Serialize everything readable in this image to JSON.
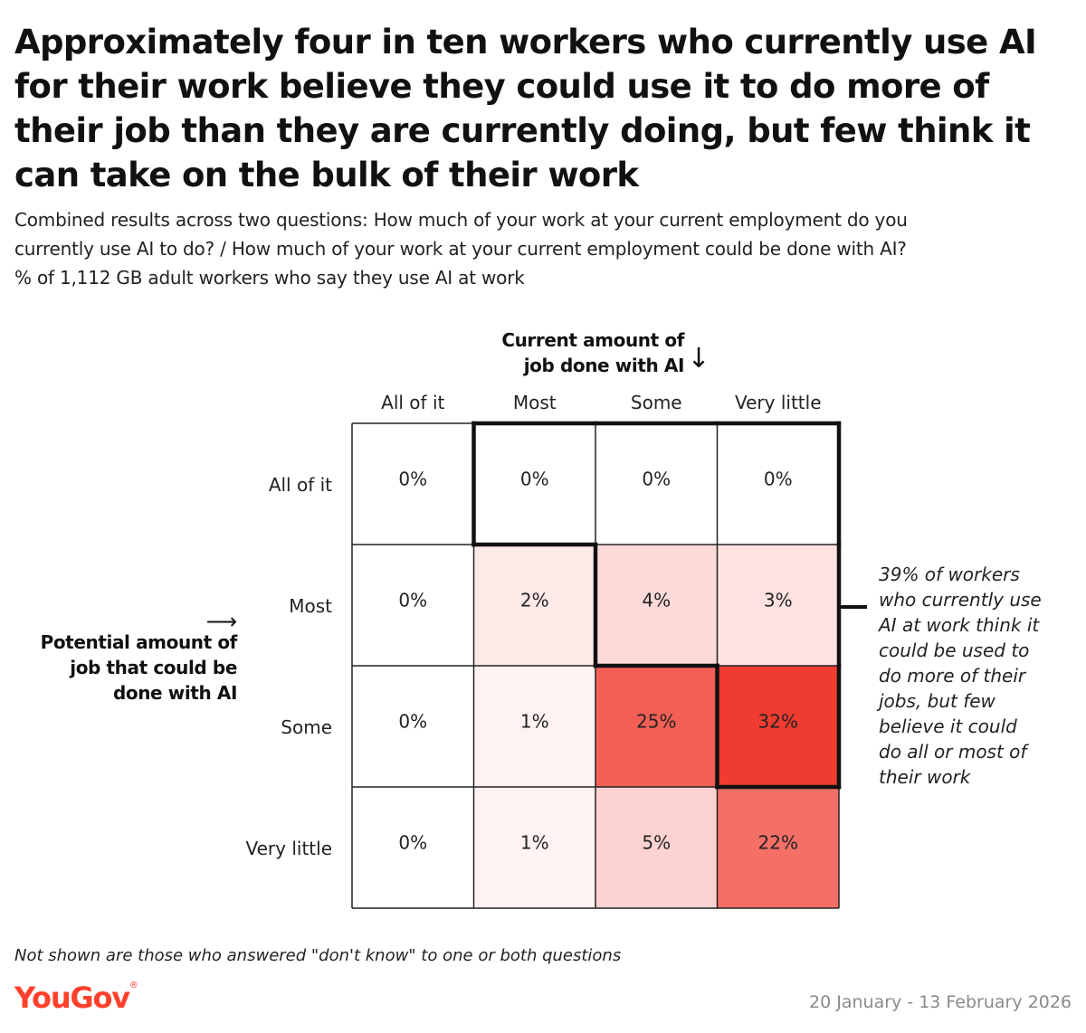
{
  "title": "Approximately four in ten workers who currently use AI for their work believe they could use it to do more of their job than they are currently doing, but few think it can take on the bulk of their work",
  "subtitle": {
    "line1": "Combined results across two questions: How much of your work at your current employment do you",
    "line2": "currently use AI to do? / How much of your work at your current employment could be done with AI?",
    "line3": "% of 1,112 GB adult workers who say they use AI at work"
  },
  "colors": {
    "brand": "#ff412c",
    "scale_low": "#ffffff",
    "scale_high": "#f03c30",
    "grid_line": "#222222",
    "outline": "#111111"
  },
  "chart_data": {
    "type": "heatmap",
    "x_axis": {
      "label_line1": "Current amount of",
      "label_line2": "job done with AI",
      "arrow": "↓",
      "categories": [
        "All of it",
        "Most",
        "Some",
        "Very little"
      ]
    },
    "y_axis": {
      "label_line1": "Potential amount of",
      "label_line2": "job that could be",
      "label_line3": "done with AI",
      "arrow": "⟶",
      "categories": [
        "All of it",
        "Most",
        "Some",
        "Very little"
      ]
    },
    "values": [
      [
        0,
        0,
        0,
        0
      ],
      [
        0,
        2,
        4,
        3
      ],
      [
        0,
        1,
        25,
        32
      ],
      [
        0,
        1,
        5,
        22
      ]
    ],
    "value_suffix": "%",
    "highlighted_cells": [
      [
        0,
        1
      ],
      [
        0,
        2
      ],
      [
        0,
        3
      ],
      [
        1,
        2
      ],
      [
        1,
        3
      ],
      [
        2,
        3
      ]
    ],
    "annotation": {
      "lines": [
        "39% of workers",
        "who currently use",
        "AI at work think it",
        "could be used to",
        "do more of their",
        "jobs, but few",
        "believe it could",
        "do all or most of",
        "their work"
      ]
    }
  },
  "footnote": "Not shown are those who answered \"don't know\" to one or both questions",
  "logo": {
    "text": "YouGov",
    "mark": "®"
  },
  "date": "20 January - 13 February 2026"
}
